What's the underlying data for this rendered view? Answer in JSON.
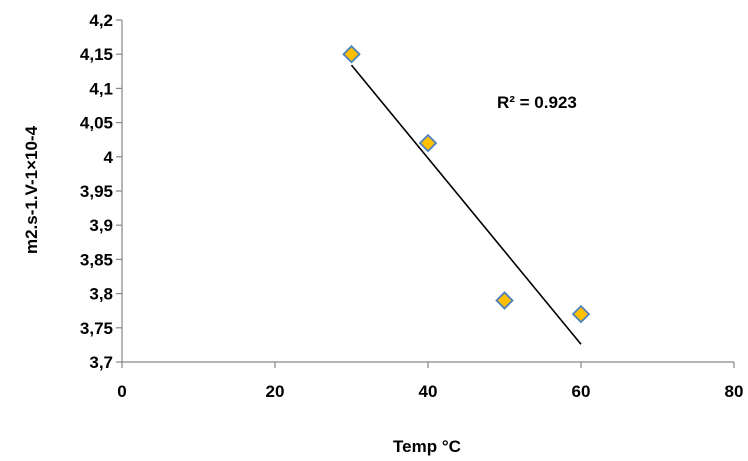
{
  "chart_data": {
    "type": "scatter",
    "xlabel": "Temp °C",
    "ylabel": "m2.s-1.V-1×10-4",
    "xlim": [
      0,
      80
    ],
    "ylim": [
      3.7,
      4.2
    ],
    "x_ticks": [
      0,
      20,
      40,
      60,
      80
    ],
    "x_tick_labels": [
      "0",
      "20",
      "40",
      "60",
      "80"
    ],
    "y_ticks": [
      3.7,
      3.75,
      3.8,
      3.85,
      3.9,
      3.95,
      4.0,
      4.05,
      4.1,
      4.15,
      4.2
    ],
    "y_tick_labels": [
      "3,7",
      "3,75",
      "3,8",
      "3,85",
      "3,9",
      "3,95",
      "4",
      "4,05",
      "4,1",
      "4,15",
      "4,2"
    ],
    "grid": false,
    "legend": "none",
    "series": [
      {
        "x": [
          30,
          40,
          50,
          60
        ],
        "y": [
          4.15,
          4.02,
          3.79,
          3.77
        ],
        "marker": "diamond",
        "color": "#FFC000",
        "edge_color": "#4F81BD"
      }
    ],
    "trendline": {
      "type": "linear",
      "color": "#000000",
      "x": [
        30,
        60
      ],
      "y": [
        4.134,
        3.726
      ]
    },
    "annotation": "R² = 0.923"
  }
}
